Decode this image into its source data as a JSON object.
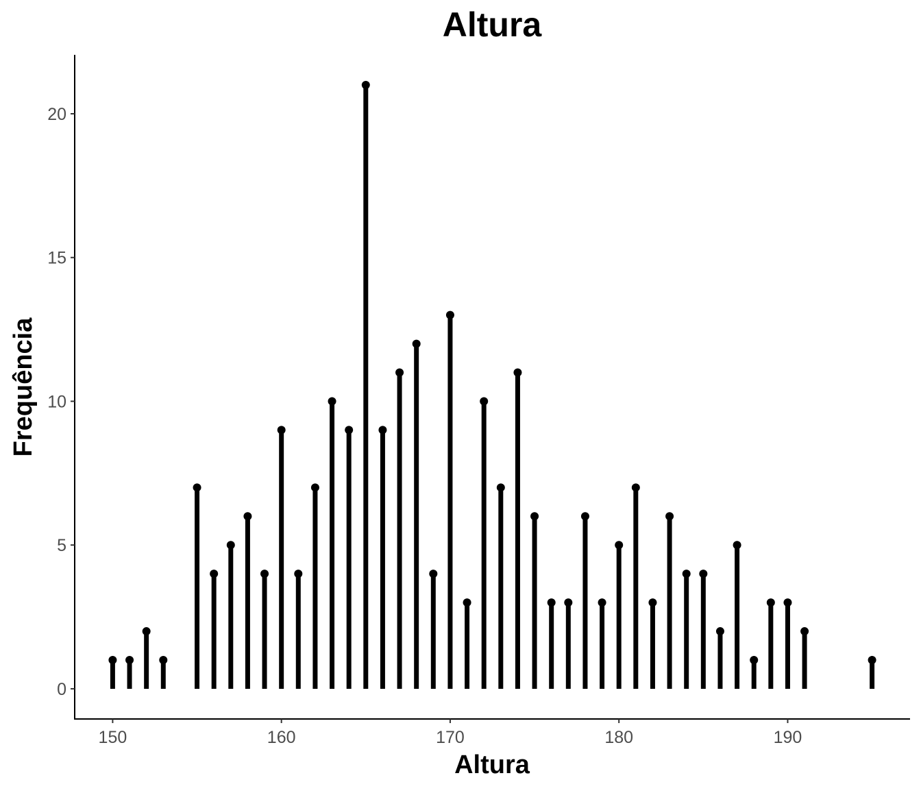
{
  "chart_data": {
    "type": "lollipop",
    "title": "Altura",
    "xlabel": "Altura",
    "ylabel": "Frequência",
    "x": [
      150,
      151,
      152,
      153,
      155,
      156,
      157,
      158,
      159,
      160,
      161,
      162,
      163,
      164,
      165,
      166,
      167,
      168,
      169,
      170,
      171,
      172,
      173,
      174,
      175,
      176,
      177,
      178,
      179,
      180,
      181,
      182,
      183,
      184,
      185,
      186,
      187,
      188,
      189,
      190,
      191,
      195
    ],
    "values": [
      1,
      1,
      2,
      1,
      7,
      4,
      5,
      6,
      4,
      9,
      4,
      7,
      10,
      9,
      21,
      9,
      11,
      12,
      4,
      13,
      3,
      10,
      7,
      11,
      6,
      3,
      3,
      6,
      3,
      5,
      7,
      3,
      6,
      4,
      4,
      2,
      5,
      1,
      3,
      3,
      2,
      1
    ],
    "xticks": [
      "150",
      "160",
      "170",
      "180",
      "190"
    ],
    "yticks": [
      "0",
      "5",
      "10",
      "15",
      "20"
    ],
    "xlim": [
      147.75,
      197.25
    ],
    "ylim": [
      -1.05,
      22.05
    ],
    "grid": false,
    "legend": "none",
    "color": "#000000"
  }
}
